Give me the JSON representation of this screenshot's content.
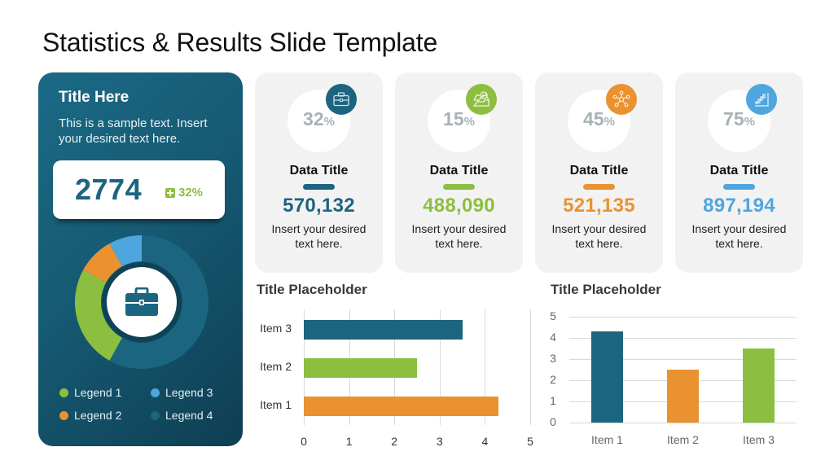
{
  "slide": {
    "title": "Statistics & Results Slide Template"
  },
  "left_panel": {
    "title": "Title Here",
    "description": "This is a sample text. Insert your desired text here.",
    "kpi_value": "2774",
    "kpi_change": "32%",
    "center_icon": "briefcase-icon",
    "legend": [
      {
        "label": "Legend 1",
        "color": "#8cbf3f"
      },
      {
        "label": "Legend 2",
        "color": "#ea9230"
      },
      {
        "label": "Legend 3",
        "color": "#4fa6de"
      },
      {
        "label": "Legend 4",
        "color": "#1b6580"
      }
    ]
  },
  "cards": [
    {
      "percent": "32",
      "pct_sign": "%",
      "icon": "briefcase-icon",
      "color": "#1b6580",
      "title": "Data Title",
      "value": "570,132",
      "description": "Insert your desired text here."
    },
    {
      "percent": "15",
      "pct_sign": "%",
      "icon": "inbox-check-icon",
      "color": "#8cbf3f",
      "title": "Data Title",
      "value": "488,090",
      "description": "Insert your desired text here."
    },
    {
      "percent": "45",
      "pct_sign": "%",
      "icon": "network-icon",
      "color": "#ea9230",
      "title": "Data Title",
      "value": "521,135",
      "description": "Insert your desired text here."
    },
    {
      "percent": "75",
      "pct_sign": "%",
      "icon": "stairs-growth-icon",
      "color": "#4fa6de",
      "title": "Data Title",
      "value": "897,194",
      "description": "Insert your desired text here."
    }
  ],
  "chart_data": [
    {
      "type": "pie",
      "variant": "donut",
      "title": "",
      "categories": [
        "Legend 1",
        "Legend 2",
        "Legend 3",
        "Legend 4"
      ],
      "values": [
        25,
        9,
        8,
        58
      ],
      "colors": [
        "#8cbf3f",
        "#ea9230",
        "#4fa6de",
        "#1b6580"
      ],
      "legend_position": "bottom"
    },
    {
      "type": "bar",
      "orientation": "horizontal",
      "title": "Title Placeholder",
      "categories": [
        "Item 1",
        "Item 2",
        "Item 3"
      ],
      "values": [
        4.3,
        2.5,
        3.5
      ],
      "colors": [
        "#ea9230",
        "#8cbf3f",
        "#1b6580"
      ],
      "xlabel": "",
      "ylabel": "",
      "xlim": [
        0,
        5
      ],
      "xticks": [
        "0",
        "1",
        "2",
        "3",
        "4",
        "5"
      ],
      "grid": true
    },
    {
      "type": "bar",
      "orientation": "vertical",
      "title": "Title Placeholder",
      "categories": [
        "Item 1",
        "Item 2",
        "Item 3"
      ],
      "values": [
        4.3,
        2.5,
        3.5
      ],
      "colors": [
        "#1b6580",
        "#ea9230",
        "#8cbf3f"
      ],
      "xlabel": "",
      "ylabel": "",
      "ylim": [
        0,
        5
      ],
      "yticks": [
        "0",
        "1",
        "2",
        "3",
        "4",
        "5"
      ],
      "grid": true
    }
  ]
}
